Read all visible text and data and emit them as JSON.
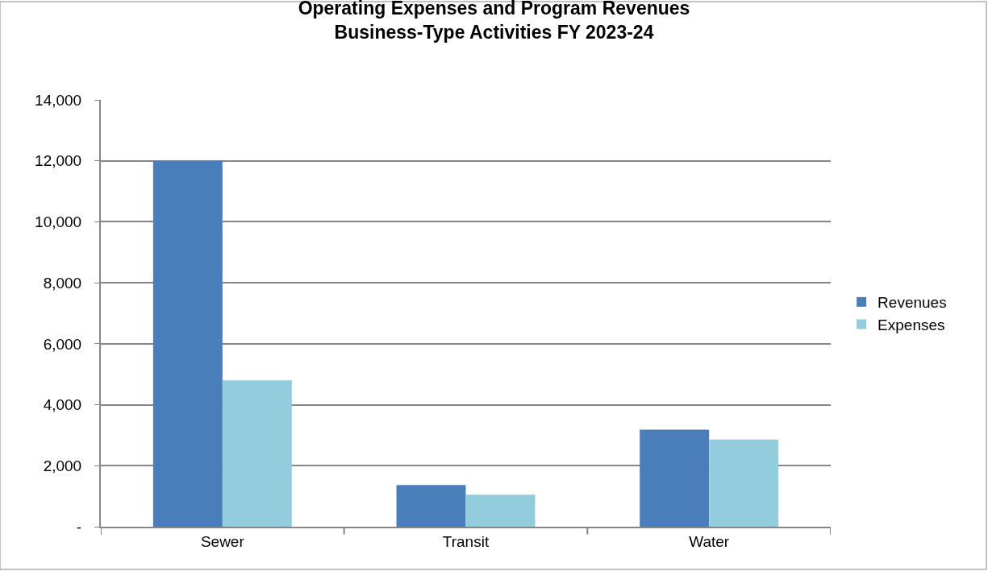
{
  "chart_data": {
    "type": "bar",
    "title": "Operating Expenses and Program Revenues\nBusiness-Type Activities FY 2023-24",
    "categories": [
      "Sewer",
      "Transit",
      "Water"
    ],
    "series": [
      {
        "name": "Revenues",
        "color": "#4a7ebb",
        "values": [
          12000,
          1370,
          3180
        ]
      },
      {
        "name": "Expenses",
        "color": "#93cddd",
        "values": [
          4800,
          1050,
          2860
        ]
      }
    ],
    "ylim": [
      0,
      14000
    ],
    "yticks": [
      {
        "value": 0,
        "label": "-"
      },
      {
        "value": 2000,
        "label": "2,000"
      },
      {
        "value": 4000,
        "label": "4,000"
      },
      {
        "value": 6000,
        "label": "6,000"
      },
      {
        "value": 8000,
        "label": "8,000"
      },
      {
        "value": 10000,
        "label": "10,000"
      },
      {
        "value": 12000,
        "label": "12,000"
      },
      {
        "value": 14000,
        "label": "14,000"
      }
    ],
    "grid": "y",
    "legend": "right"
  }
}
